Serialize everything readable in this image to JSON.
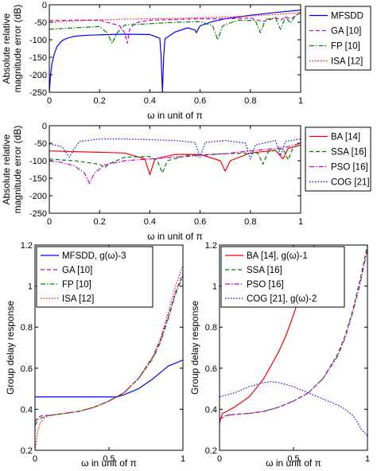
{
  "chart_data": [
    {
      "type": "line",
      "xlabel": "ω in unit of π",
      "ylabel": "Absolute relative magnitude error (dB)",
      "xlim": [
        0,
        1
      ],
      "ylim": [
        -250,
        0
      ],
      "xticks": [
        0,
        0.2,
        0.4,
        0.6,
        0.8,
        1
      ],
      "xtick_labels": [
        "0",
        "0.2",
        "0.4",
        "0.6",
        "0.8",
        "1"
      ],
      "yticks": [
        0,
        -50,
        -100,
        -150,
        -200,
        -250
      ],
      "ytick_labels": [
        "0",
        "-50",
        "-100",
        "-150",
        "-200",
        "-250"
      ],
      "legend_position": "outside-right",
      "series": [
        {
          "name": "MFSDD",
          "color": "#0000ff",
          "dash": "solid",
          "x": [
            0,
            0.005,
            0.01,
            0.02,
            0.03,
            0.05,
            0.07,
            0.1,
            0.15,
            0.2,
            0.3,
            0.4,
            0.44,
            0.445,
            0.45,
            0.455,
            0.46,
            0.5,
            0.55,
            0.58,
            0.585,
            0.6,
            0.65,
            0.7,
            0.8,
            0.9,
            1.0
          ],
          "y": [
            -250,
            -200,
            -170,
            -140,
            -120,
            -103,
            -96,
            -90,
            -87,
            -86,
            -84,
            -85,
            -96,
            -150,
            -250,
            -150,
            -97,
            -78,
            -66,
            -72,
            -80,
            -60,
            -48,
            -40,
            -30,
            -22,
            -15
          ]
        },
        {
          "name": "GA [10]",
          "color": "#cc00cc",
          "dash": "dashed",
          "x": [
            0,
            0.1,
            0.2,
            0.28,
            0.3,
            0.31,
            0.32,
            0.34,
            0.4,
            0.5,
            0.6,
            0.7,
            0.8,
            0.85,
            0.88,
            0.9,
            0.92,
            0.94,
            0.96,
            0.98,
            1.0
          ],
          "y": [
            -45,
            -44,
            -44,
            -60,
            -80,
            -110,
            -70,
            -52,
            -44,
            -42,
            -40,
            -40,
            -38,
            -48,
            -42,
            -36,
            -44,
            -34,
            -40,
            -32,
            -22
          ]
        },
        {
          "name": "FP [10]",
          "color": "#008000",
          "dash": "dashdot",
          "x": [
            0,
            0.1,
            0.2,
            0.23,
            0.25,
            0.27,
            0.3,
            0.4,
            0.5,
            0.6,
            0.65,
            0.67,
            0.69,
            0.75,
            0.82,
            0.84,
            0.86,
            0.9,
            0.92,
            0.94,
            0.96,
            0.98,
            1.0
          ],
          "y": [
            -70,
            -66,
            -62,
            -80,
            -110,
            -80,
            -58,
            -54,
            -50,
            -48,
            -60,
            -100,
            -60,
            -44,
            -45,
            -80,
            -42,
            -38,
            -70,
            -36,
            -52,
            -30,
            -22
          ]
        },
        {
          "name": "ISA [12]",
          "color": "#ff0000",
          "dash": "dotted",
          "x": [
            0,
            0.1,
            0.2,
            0.3,
            0.4,
            0.5,
            0.6,
            0.7,
            0.8,
            0.9,
            1.0
          ],
          "y": [
            -50,
            -46,
            -43,
            -41,
            -40,
            -39,
            -37,
            -35,
            -32,
            -28,
            -22
          ]
        }
      ]
    },
    {
      "type": "line",
      "xlabel": "ω in unit of π",
      "ylabel": "Absolute relative magnitude error (dB)",
      "xlim": [
        0,
        1
      ],
      "ylim": [
        -250,
        0
      ],
      "xticks": [
        0,
        0.2,
        0.4,
        0.6,
        0.8,
        1
      ],
      "xtick_labels": [
        "0",
        "0.2",
        "0.4",
        "0.6",
        "0.8",
        "1"
      ],
      "yticks": [
        0,
        -50,
        -100,
        -150,
        -200,
        -250
      ],
      "ytick_labels": [
        "0",
        "-50",
        "-100",
        "-150",
        "-200",
        "-250"
      ],
      "legend_position": "outside-right",
      "series": [
        {
          "name": "BA [14]",
          "color": "#ff0000",
          "dash": "solid",
          "x": [
            0,
            0.1,
            0.2,
            0.3,
            0.38,
            0.4,
            0.42,
            0.5,
            0.6,
            0.68,
            0.7,
            0.72,
            0.8,
            0.9,
            0.93,
            0.95,
            1.0
          ],
          "y": [
            -72,
            -74,
            -76,
            -78,
            -95,
            -140,
            -95,
            -82,
            -82,
            -100,
            -130,
            -100,
            -78,
            -70,
            -95,
            -65,
            -55
          ]
        },
        {
          "name": "SSA [16]",
          "color": "#008000",
          "dash": "dashed",
          "x": [
            0,
            0.05,
            0.1,
            0.15,
            0.2,
            0.22,
            0.24,
            0.3,
            0.4,
            0.43,
            0.45,
            0.47,
            0.55,
            0.7,
            0.83,
            0.85,
            0.87,
            0.93,
            0.95,
            0.97,
            1.0
          ],
          "y": [
            -95,
            -98,
            -100,
            -105,
            -110,
            -120,
            -108,
            -90,
            -88,
            -100,
            -135,
            -100,
            -85,
            -80,
            -78,
            -110,
            -75,
            -66,
            -98,
            -62,
            -55
          ]
        },
        {
          "name": "PSO [16]",
          "color": "#cc00cc",
          "dash": "dashdot",
          "x": [
            0,
            0.05,
            0.1,
            0.14,
            0.16,
            0.18,
            0.22,
            0.3,
            0.4,
            0.5,
            0.6,
            0.7,
            0.8,
            0.9,
            0.95,
            1.0
          ],
          "y": [
            -100,
            -105,
            -115,
            -135,
            -165,
            -135,
            -112,
            -100,
            -95,
            -90,
            -85,
            -80,
            -72,
            -65,
            -60,
            -50
          ]
        },
        {
          "name": "COG [21]",
          "color": "#0000ff",
          "dash": "dotted",
          "x": [
            0,
            0.05,
            0.08,
            0.1,
            0.12,
            0.2,
            0.3,
            0.4,
            0.5,
            0.58,
            0.6,
            0.62,
            0.7,
            0.78,
            0.8,
            0.82,
            0.9,
            0.92,
            0.94,
            1.0
          ],
          "y": [
            -52,
            -60,
            -90,
            -65,
            -45,
            -38,
            -38,
            -40,
            -42,
            -48,
            -90,
            -48,
            -42,
            -50,
            -95,
            -55,
            -42,
            -85,
            -45,
            -38
          ]
        }
      ]
    },
    {
      "type": "line",
      "xlabel": "ω in unit of π",
      "ylabel": "Group delay response",
      "xlim": [
        0,
        1
      ],
      "ylim": [
        0.2,
        1.2
      ],
      "xticks": [
        0,
        0.5,
        1
      ],
      "xtick_labels": [
        "0",
        "0.5",
        "1"
      ],
      "yticks": [
        0.2,
        0.4,
        0.6,
        0.8,
        1,
        1.2
      ],
      "ytick_labels": [
        "0.2",
        "0.4",
        "0.6",
        "0.8",
        "1",
        "1.2"
      ],
      "legend_position": "top-left",
      "series": [
        {
          "name": "MFSDD, g(ω)-3",
          "color": "#0000ff",
          "dash": "solid",
          "x": [
            0,
            0.55,
            0.6,
            0.7,
            0.8,
            0.9,
            1.0
          ],
          "y": [
            0.46,
            0.46,
            0.47,
            0.5,
            0.55,
            0.61,
            0.64
          ]
        },
        {
          "name": "GA [10]",
          "color": "#cc00cc",
          "dash": "dashed",
          "x": [
            0,
            0.02,
            0.05,
            0.1,
            0.2,
            0.3,
            0.4,
            0.5,
            0.6,
            0.7,
            0.8,
            0.85,
            0.9,
            0.95,
            1.0
          ],
          "y": [
            0.34,
            0.36,
            0.37,
            0.37,
            0.38,
            0.39,
            0.41,
            0.44,
            0.48,
            0.55,
            0.66,
            0.74,
            0.85,
            0.97,
            1.06
          ]
        },
        {
          "name": "FP [10]",
          "color": "#008000",
          "dash": "dashdot",
          "x": [
            0,
            0.02,
            0.05,
            0.1,
            0.2,
            0.3,
            0.4,
            0.5,
            0.6,
            0.7,
            0.8,
            0.85,
            0.9,
            0.95,
            1.0
          ],
          "y": [
            0.32,
            0.35,
            0.36,
            0.37,
            0.38,
            0.39,
            0.41,
            0.44,
            0.48,
            0.55,
            0.65,
            0.73,
            0.84,
            0.96,
            1.05
          ]
        },
        {
          "name": "ISA [12]",
          "color": "#ff0000",
          "dash": "dotted",
          "x": [
            0,
            0.01,
            0.02,
            0.04,
            0.07,
            0.1,
            0.2,
            0.3,
            0.4,
            0.5,
            0.6,
            0.7,
            0.8,
            0.85,
            0.9,
            0.95,
            1.0
          ],
          "y": [
            0.2,
            0.25,
            0.3,
            0.34,
            0.36,
            0.37,
            0.38,
            0.39,
            0.41,
            0.44,
            0.48,
            0.55,
            0.66,
            0.75,
            0.87,
            1.0,
            1.1
          ]
        }
      ]
    },
    {
      "type": "line",
      "xlabel": "ω in unit of π",
      "ylabel": "Group delay response",
      "xlim": [
        0,
        1
      ],
      "ylim": [
        0.2,
        1.2
      ],
      "xticks": [
        0,
        0.5,
        1
      ],
      "xtick_labels": [
        "0",
        "0.5",
        "1"
      ],
      "yticks": [
        0.2,
        0.4,
        0.6,
        0.8,
        1,
        1.2
      ],
      "ytick_labels": [
        "0.2",
        "0.4",
        "0.6",
        "0.8",
        "1",
        "1.2"
      ],
      "legend_position": "top-left",
      "series": [
        {
          "name": "BA [14], g(ω)-1",
          "color": "#ff0000",
          "dash": "solid",
          "x": [
            0,
            0.01,
            0.02,
            0.05,
            0.1,
            0.2,
            0.3,
            0.4,
            0.45,
            0.5,
            0.55,
            0.6,
            0.64
          ],
          "y": [
            0.33,
            0.36,
            0.38,
            0.39,
            0.41,
            0.46,
            0.55,
            0.68,
            0.76,
            0.86,
            0.97,
            1.1,
            1.2
          ]
        },
        {
          "name": "SSA [16]",
          "color": "#008000",
          "dash": "dashed",
          "x": [
            0,
            0.02,
            0.05,
            0.1,
            0.2,
            0.3,
            0.4,
            0.5,
            0.6,
            0.7,
            0.8,
            0.85,
            0.9,
            0.95,
            1.0
          ],
          "y": [
            0.35,
            0.36,
            0.37,
            0.375,
            0.38,
            0.39,
            0.41,
            0.44,
            0.48,
            0.55,
            0.67,
            0.76,
            0.88,
            1.03,
            1.2
          ]
        },
        {
          "name": "PSO [16]",
          "color": "#cc00cc",
          "dash": "dashdot",
          "x": [
            0,
            0.02,
            0.05,
            0.1,
            0.2,
            0.3,
            0.4,
            0.5,
            0.6,
            0.7,
            0.8,
            0.85,
            0.9,
            0.95,
            1.0
          ],
          "y": [
            0.35,
            0.36,
            0.37,
            0.375,
            0.38,
            0.39,
            0.41,
            0.44,
            0.48,
            0.55,
            0.66,
            0.75,
            0.87,
            1.01,
            1.18
          ]
        },
        {
          "name": "COG [21], g(ω)-2",
          "color": "#0000ff",
          "dash": "dotted",
          "x": [
            0,
            0.1,
            0.2,
            0.3,
            0.35,
            0.4,
            0.5,
            0.6,
            0.7,
            0.8,
            0.85,
            0.9,
            0.93,
            0.96,
            1.0
          ],
          "y": [
            0.46,
            0.48,
            0.51,
            0.53,
            0.535,
            0.53,
            0.51,
            0.48,
            0.45,
            0.42,
            0.4,
            0.37,
            0.34,
            0.3,
            0.27
          ]
        }
      ]
    }
  ]
}
